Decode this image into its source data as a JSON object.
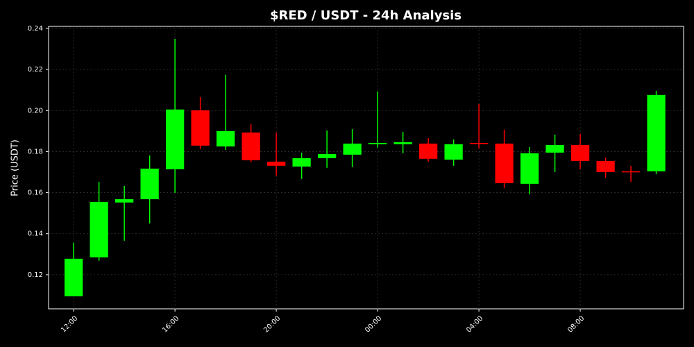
{
  "chart_data": {
    "type": "candlestick",
    "title": "$RED / USDT - 24h Analysis",
    "y_label": "Price (USDT)",
    "categories": [
      "12:00",
      null,
      null,
      null,
      "16:00",
      null,
      null,
      null,
      "20:00",
      null,
      null,
      null,
      "00:00",
      null,
      null,
      null,
      "04:00",
      null,
      null,
      null,
      "08:00",
      null,
      null,
      null
    ],
    "open": [
      0.1095,
      0.1285,
      0.1552,
      0.1568,
      0.1714,
      0.2001,
      0.1825,
      0.1893,
      0.1751,
      0.1727,
      0.1768,
      0.1785,
      0.1836,
      0.1836,
      0.1839,
      0.1761,
      0.1842,
      0.1839,
      0.1643,
      0.1795,
      0.1832,
      0.1754,
      0.1704,
      0.1704
    ],
    "high": [
      0.1356,
      0.1653,
      0.1633,
      0.1781,
      0.2349,
      0.2065,
      0.2174,
      0.1934,
      0.1893,
      0.1795,
      0.1903,
      0.191,
      0.2093,
      0.1896,
      0.1866,
      0.1859,
      0.2032,
      0.1907,
      0.1822,
      0.1883,
      0.1886,
      0.1771,
      0.1731,
      0.2096
    ],
    "low": [
      0.1095,
      0.1268,
      0.1366,
      0.145,
      0.1599,
      0.1812,
      0.1808,
      0.1748,
      0.1683,
      0.1667,
      0.1721,
      0.1724,
      0.1819,
      0.1792,
      0.1751,
      0.1731,
      0.1815,
      0.1623,
      0.1592,
      0.17,
      0.1714,
      0.1673,
      0.1653,
      0.169
    ],
    "close": [
      0.1278,
      0.1555,
      0.1568,
      0.1717,
      0.2005,
      0.1829,
      0.19,
      0.1758,
      0.1731,
      0.1768,
      0.1788,
      0.1839,
      0.1842,
      0.1846,
      0.1765,
      0.1836,
      0.1839,
      0.1646,
      0.1792,
      0.1832,
      0.1754,
      0.17,
      0.17,
      0.2076
    ],
    "up_color": "#00ff00",
    "down_color": "#ff0000",
    "ylim": [
      0.1034,
      0.241
    ],
    "yticks": [
      0.12,
      0.14,
      0.16,
      0.18,
      {
        "value": 0.2,
        "label": "0.20"
      },
      0.22,
      0.24
    ],
    "grid": true
  }
}
